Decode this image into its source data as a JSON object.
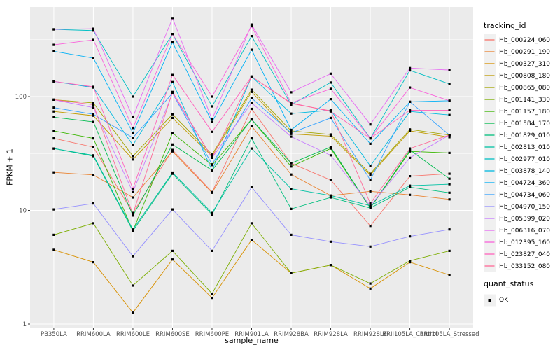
{
  "chart_data": {
    "type": "line",
    "title": "",
    "xlabel": "sample_name",
    "ylabel": "FPKM + 1",
    "y_scale": "log10",
    "ylim": [
      1,
      630
    ],
    "y_ticks": [
      1,
      10,
      100
    ],
    "y_minor_ticks": [
      3.162,
      31.623,
      316.228
    ],
    "grid": true,
    "panel_bg": "#EBEBEB",
    "grid_color": "#FFFFFF",
    "tick_color": "#333333",
    "point_color": "#000000",
    "point_shape": "square",
    "legend_title": "tracking_id",
    "legend_position": "right",
    "quant_status": {
      "title": "quant_status",
      "items": [
        "OK"
      ]
    },
    "categories": [
      "PB350LA",
      "RRIM600LA",
      "RRIM600LE",
      "RRIM600SE",
      "RRIM600PE",
      "RRIM901LA",
      "RRIM928BA",
      "RRIM928LA",
      "RRIM928LE",
      "RRII105LA_Control",
      "RRII105LA_Stressed"
    ],
    "series": [
      {
        "name": "Hb_000224_060",
        "color": "#F8766D",
        "values": [
          43,
          36,
          9.5,
          34,
          14.5,
          78,
          26,
          18.5,
          7.3,
          20,
          21
        ]
      },
      {
        "name": "Hb_000291_190",
        "color": "#EA8331",
        "values": [
          21.6,
          20.5,
          13,
          33,
          14.3,
          55,
          20.7,
          13.5,
          14.7,
          13.7,
          12.5
        ]
      },
      {
        "name": "Hb_000327_310",
        "color": "#D89000",
        "values": [
          4.5,
          3.5,
          1.26,
          3.7,
          1.7,
          5.5,
          2.8,
          3.3,
          2.05,
          3.5,
          2.7
        ]
      },
      {
        "name": "Hb_000808_180",
        "color": "#C09B00",
        "values": [
          74,
          68,
          28,
          65,
          30,
          110,
          47,
          45,
          20.5,
          50,
          44
        ]
      },
      {
        "name": "Hb_000865_080",
        "color": "#A3A500",
        "values": [
          94,
          88,
          30,
          70,
          31,
          115,
          50,
          46.5,
          21,
          51.5,
          46
        ]
      },
      {
        "name": "Hb_001141_330",
        "color": "#7CAE00",
        "values": [
          6.1,
          7.7,
          2.18,
          4.4,
          1.85,
          7.7,
          2.8,
          3.3,
          2.27,
          3.6,
          4.4
        ]
      },
      {
        "name": "Hb_001157_180",
        "color": "#39B600",
        "values": [
          50,
          43,
          6.6,
          48,
          25,
          63,
          24.3,
          35,
          10.5,
          33,
          32
        ]
      },
      {
        "name": "Hb_001584_170",
        "color": "#00BB4E",
        "values": [
          66,
          60,
          9.0,
          38,
          22.5,
          63,
          26,
          36,
          10.5,
          34,
          19
        ]
      },
      {
        "name": "Hb_001829_010",
        "color": "#00BF7D",
        "values": [
          35,
          30,
          6.6,
          21,
          9.2,
          43,
          10.3,
          13,
          10.5,
          16,
          14.3
        ]
      },
      {
        "name": "Hb_002813_010",
        "color": "#00C1A3",
        "values": [
          35,
          30.5,
          6.8,
          21.5,
          9.5,
          35,
          15.5,
          13.5,
          11,
          16.5,
          17
        ]
      },
      {
        "name": "Hb_002977_010",
        "color": "#00BFC4",
        "values": [
          390,
          380,
          100,
          355,
          82,
          340,
          85,
          133,
          43,
          170,
          129
        ]
      },
      {
        "name": "Hb_003878_140",
        "color": "#00BAE0",
        "values": [
          136,
          120,
          37.5,
          134,
          22.5,
          150,
          71,
          76,
          24.6,
          74,
          69
        ]
      },
      {
        "name": "Hb_004724_360",
        "color": "#00B0F6",
        "values": [
          250,
          218,
          48,
          300,
          60,
          258,
          51,
          95,
          38.5,
          90,
          92
        ]
      },
      {
        "name": "Hb_004734_060",
        "color": "#35A2FF",
        "values": [
          80,
          70,
          43.5,
          107,
          25.4,
          97,
          48,
          65,
          18.5,
          90,
          46
        ]
      },
      {
        "name": "Hb_004970_150",
        "color": "#9590FF",
        "values": [
          10.2,
          11.5,
          3.95,
          10.2,
          4.4,
          16,
          6.1,
          5.3,
          4.8,
          5.9,
          6.8
        ]
      },
      {
        "name": "Hb_005399_020",
        "color": "#C77CFF",
        "values": [
          94,
          80,
          14.5,
          107,
          29,
          88,
          44.5,
          30.5,
          11,
          29,
          46
        ]
      },
      {
        "name": "Hb_006316_070",
        "color": "#E76BF3",
        "values": [
          390,
          395,
          66,
          490,
          63,
          430,
          109,
          159,
          57,
          178,
          171
        ]
      },
      {
        "name": "Hb_012395_160",
        "color": "#FA62DB",
        "values": [
          285,
          315,
          53,
          355,
          100,
          415,
          88,
          117,
          43,
          120,
          92
        ]
      },
      {
        "name": "Hb_023827_040",
        "color": "#FF62BC",
        "values": [
          136,
          122,
          15.5,
          155,
          49,
          150,
          88,
          74,
          43,
          76,
          76
        ]
      },
      {
        "name": "Hb_033152_080",
        "color": "#FF6A98",
        "values": [
          94,
          85,
          9.3,
          110,
          29,
          150,
          87,
          75,
          11.5,
          35,
          46
        ]
      }
    ]
  }
}
